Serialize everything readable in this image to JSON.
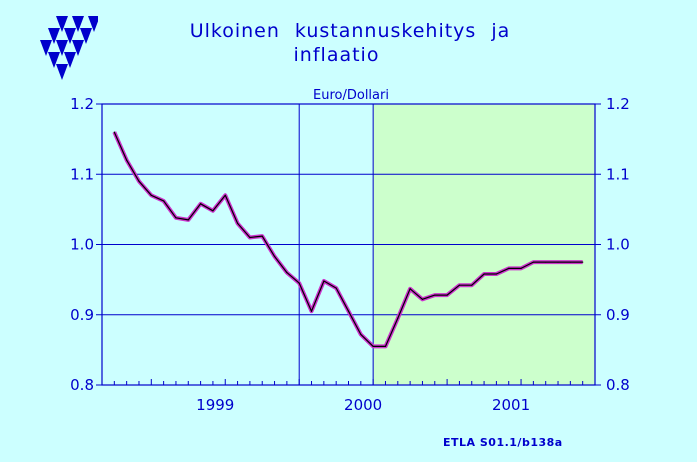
{
  "header": {
    "title_line1": "Ulkoinen  kustannuskehitys  ja",
    "title_line2": "inflaatio"
  },
  "footer": {
    "source": "ETLA S01.1/b138a"
  },
  "logo": {
    "icon": "triangle-cluster-logo",
    "color": "#0000cc"
  },
  "colors": {
    "background": "#ccffff",
    "plot_area": "#ccffff",
    "forecast_area": "#ccffcc",
    "axis": "#0000cc",
    "line_outer": "#cc33cc",
    "line_inner": "#000000"
  },
  "chart_data": {
    "type": "line",
    "title": "Euro/Dollari",
    "xlabel": "",
    "ylabel": "",
    "x_categories": [
      "1999",
      "2000",
      "2001"
    ],
    "ylim": [
      0.8,
      1.2
    ],
    "yticks": [
      "0.8",
      "0.9",
      "1.0",
      "1.1",
      "1.2"
    ],
    "grid": true,
    "forecast_region_start_month": "2000-07",
    "series": [
      {
        "name": "",
        "x": [
          "1998-10",
          "1998-11",
          "1998-12",
          "1999-01",
          "1999-02",
          "1999-03",
          "1999-04",
          "1999-05",
          "1999-06",
          "1999-07",
          "1999-08",
          "1999-09",
          "1999-10",
          "1999-11",
          "1999-12",
          "2000-01",
          "2000-02",
          "2000-03",
          "2000-04",
          "2000-05",
          "2000-06",
          "2000-07",
          "2000-08",
          "2000-09",
          "2000-10",
          "2000-11",
          "2000-12",
          "2001-01",
          "2001-02",
          "2001-03",
          "2001-04",
          "2001-05",
          "2001-06",
          "2001-07",
          "2001-08",
          "2001-09",
          "2001-10",
          "2001-11",
          "2001-12"
        ],
        "values": [
          1.16,
          1.12,
          1.09,
          1.07,
          1.062,
          1.038,
          1.035,
          1.058,
          1.048,
          1.07,
          1.03,
          1.01,
          1.012,
          0.983,
          0.96,
          0.945,
          0.905,
          0.948,
          0.938,
          0.905,
          0.872,
          0.855,
          0.855,
          0.895,
          0.937,
          0.922,
          0.928,
          0.928,
          0.942,
          0.942,
          0.958,
          0.958,
          0.966,
          0.966,
          0.975,
          0.975,
          0.975,
          0.975,
          0.975
        ]
      }
    ]
  }
}
